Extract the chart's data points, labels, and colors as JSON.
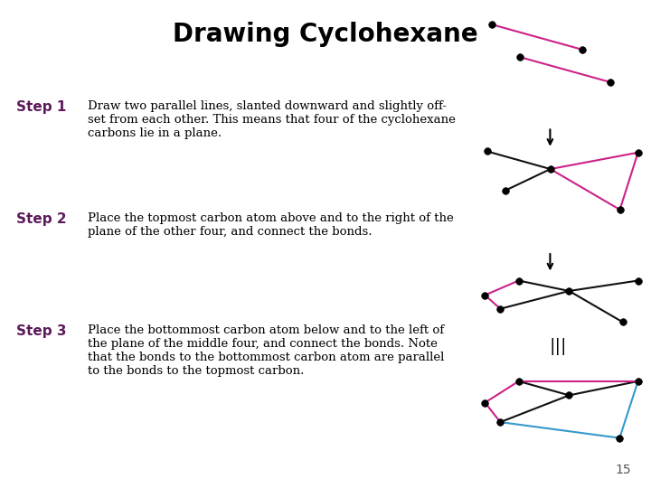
{
  "title": "Drawing Cyclohexane",
  "title_fontsize": 20,
  "title_fontweight": "bold",
  "page_number": "15",
  "step_color": "#5c1a5c",
  "step_fontsize": 11,
  "body_fontsize": 9.5,
  "steps": [
    {
      "label": "Step 1",
      "text": "Draw two parallel lines, slanted downward and slightly off-\nset from each other. This means that four of the cyclohexane\ncarbons lie in a plane."
    },
    {
      "label": "Step 2",
      "text": "Place the topmost carbon atom above and to the right of the\nplane of the other four, and connect the bonds."
    },
    {
      "label": "Step 3",
      "text": "Place the bottommost carbon atom below and to the left of\nthe plane of the middle four, and connect the bonds. Note\nthat the bonds to the bottommost carbon atom are parallel\nto the bonds to the topmost carbon."
    }
  ],
  "step1_pink": [
    [
      [
        0.0,
        1.0
      ],
      [
        0.65,
        0.55
      ]
    ],
    [
      [
        0.2,
        0.42
      ],
      [
        0.85,
        -0.03
      ]
    ]
  ],
  "step2_black": [
    [
      [
        0.0,
        1.0
      ],
      [
        0.42,
        0.72
      ]
    ],
    [
      [
        0.12,
        0.38
      ],
      [
        0.42,
        0.72
      ]
    ]
  ],
  "step2_pink": [
    [
      [
        0.42,
        0.72
      ],
      [
        1.0,
        0.98
      ]
    ],
    [
      [
        0.42,
        0.72
      ],
      [
        0.88,
        0.08
      ]
    ],
    [
      [
        1.0,
        0.98
      ],
      [
        0.88,
        0.08
      ]
    ]
  ],
  "step3top_black": [
    [
      [
        0.22,
        1.0
      ],
      [
        0.55,
        0.75
      ]
    ],
    [
      [
        0.1,
        0.32
      ],
      [
        0.55,
        0.75
      ]
    ],
    [
      [
        0.55,
        0.75
      ],
      [
        1.0,
        1.0
      ]
    ],
    [
      [
        0.55,
        0.75
      ],
      [
        0.9,
        0.0
      ]
    ]
  ],
  "step3top_pink": [
    [
      [
        0.0,
        0.65
      ],
      [
        0.22,
        1.0
      ]
    ],
    [
      [
        0.0,
        0.65
      ],
      [
        0.1,
        0.32
      ]
    ]
  ],
  "step3fin_black": [
    [
      [
        0.22,
        0.95
      ],
      [
        0.55,
        0.72
      ]
    ],
    [
      [
        0.1,
        0.28
      ],
      [
        0.55,
        0.72
      ]
    ],
    [
      [
        0.55,
        0.72
      ],
      [
        1.0,
        0.95
      ]
    ]
  ],
  "step3fin_pink": [
    [
      [
        0.0,
        0.6
      ],
      [
        0.22,
        0.95
      ]
    ],
    [
      [
        0.0,
        0.6
      ],
      [
        0.1,
        0.28
      ]
    ],
    [
      [
        0.22,
        0.95
      ],
      [
        1.0,
        0.95
      ]
    ]
  ],
  "step3fin_cyan": [
    [
      [
        1.0,
        0.95
      ],
      [
        0.88,
        0.02
      ]
    ],
    [
      [
        0.1,
        0.28
      ],
      [
        0.88,
        0.02
      ]
    ]
  ]
}
